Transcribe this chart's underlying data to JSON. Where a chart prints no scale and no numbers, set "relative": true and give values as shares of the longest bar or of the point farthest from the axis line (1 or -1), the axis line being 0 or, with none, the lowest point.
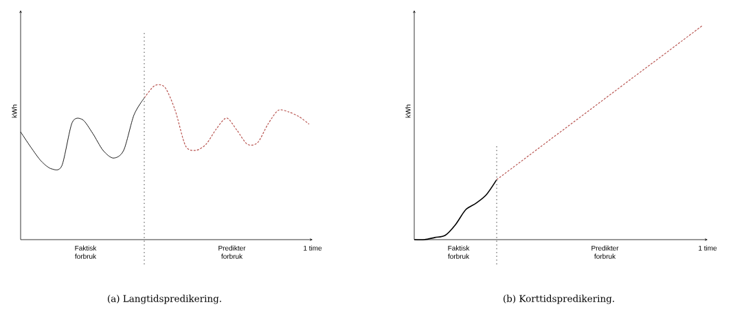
{
  "chart_data": [
    {
      "type": "line",
      "relative": true,
      "title": "(a) Langtidspredikering.",
      "xlabel": "1 time",
      "ylabel": "kWh",
      "categories": [
        null,
        null,
        null,
        null,
        null,
        null,
        null,
        null,
        null,
        null,
        null,
        null,
        null,
        null,
        null,
        null,
        null,
        null,
        null,
        null,
        null,
        null,
        null,
        null,
        null,
        null,
        null,
        null,
        null
      ],
      "series": [
        {
          "color": "#000000",
          "line_style": "solid",
          "values": [
            0.7,
            0.6,
            0.51,
            0.46,
            0.48,
            0.76,
            0.78,
            0.69,
            0.58,
            0.53,
            0.58,
            0.81,
            0.92,
            null,
            null,
            null,
            null,
            null,
            null,
            null,
            null,
            null,
            null,
            null,
            null,
            null,
            null,
            null,
            null
          ]
        },
        {
          "color": "#b85450",
          "line_style": "dashed",
          "values": [
            null,
            null,
            null,
            null,
            null,
            null,
            null,
            null,
            null,
            null,
            null,
            null,
            0.92,
            1.0,
            0.99,
            0.84,
            0.61,
            0.58,
            0.62,
            0.72,
            0.79,
            0.71,
            0.62,
            0.63,
            0.75,
            0.84,
            0.83,
            0.8,
            0.75
          ]
        }
      ],
      "annotations": [
        "Faktisk forbruk",
        "Predikter forbruk"
      ]
    },
    {
      "type": "line",
      "relative": true,
      "title": "(b) Korttidspredikering.",
      "xlabel": "1 time",
      "ylabel": "kWh",
      "categories": [
        null,
        null,
        null,
        null,
        null,
        null,
        null,
        null,
        null,
        null,
        null,
        null,
        null,
        null,
        null,
        null,
        null,
        null,
        null,
        null,
        null,
        null,
        null,
        null,
        null,
        null,
        null,
        null,
        null
      ],
      "series": [
        {
          "color": "#000000",
          "line_style": "solid",
          "values": [
            0,
            0,
            0.01,
            0.02,
            0.07,
            0.14,
            0.17,
            0.21,
            0.28,
            null,
            null,
            null,
            null,
            null,
            null,
            null,
            null,
            null,
            null,
            null,
            null,
            null,
            null,
            null,
            null,
            null,
            null,
            null,
            null
          ]
        },
        {
          "color": "#b85450",
          "line_style": "dashed",
          "values": [
            null,
            null,
            null,
            null,
            null,
            null,
            null,
            null,
            0.28,
            null,
            null,
            null,
            null,
            null,
            null,
            null,
            null,
            null,
            null,
            null,
            null,
            null,
            null,
            null,
            null,
            null,
            null,
            null,
            1.0
          ]
        }
      ],
      "annotations": [
        "Faktisk forbruk",
        "Predikter forbruk"
      ]
    }
  ]
}
